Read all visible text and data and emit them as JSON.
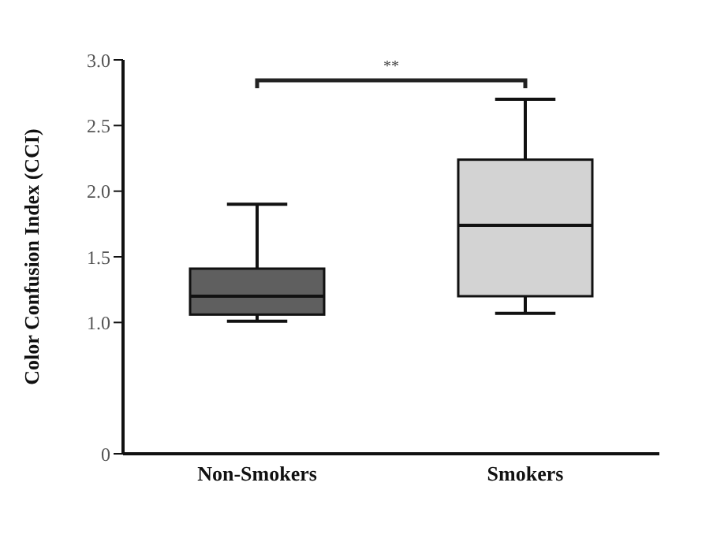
{
  "chart_data": {
    "type": "box",
    "ylabel": "Color Confusion Index (CCI)",
    "categories": [
      "Non-Smokers",
      "Smokers"
    ],
    "colors": [
      "#5f5f5f",
      "#d3d3d3"
    ],
    "boxes": [
      {
        "low": 1.01,
        "q1": 1.06,
        "median": 1.2,
        "q3": 1.41,
        "high": 1.9
      },
      {
        "low": 1.07,
        "q1": 1.2,
        "median": 1.74,
        "q3": 2.24,
        "high": 2.7
      }
    ],
    "ylim": [
      0,
      3
    ],
    "yticks": [
      0,
      {
        "value": 1,
        "label": "1.0"
      },
      {
        "value": 1.5,
        "label": "1.5"
      },
      {
        "value": 2,
        "label": "2.0"
      },
      {
        "value": 2.5,
        "label": "2.5"
      },
      {
        "value": 3,
        "label": "3.0"
      }
    ],
    "grid": false,
    "annotations": [
      "**"
    ]
  }
}
